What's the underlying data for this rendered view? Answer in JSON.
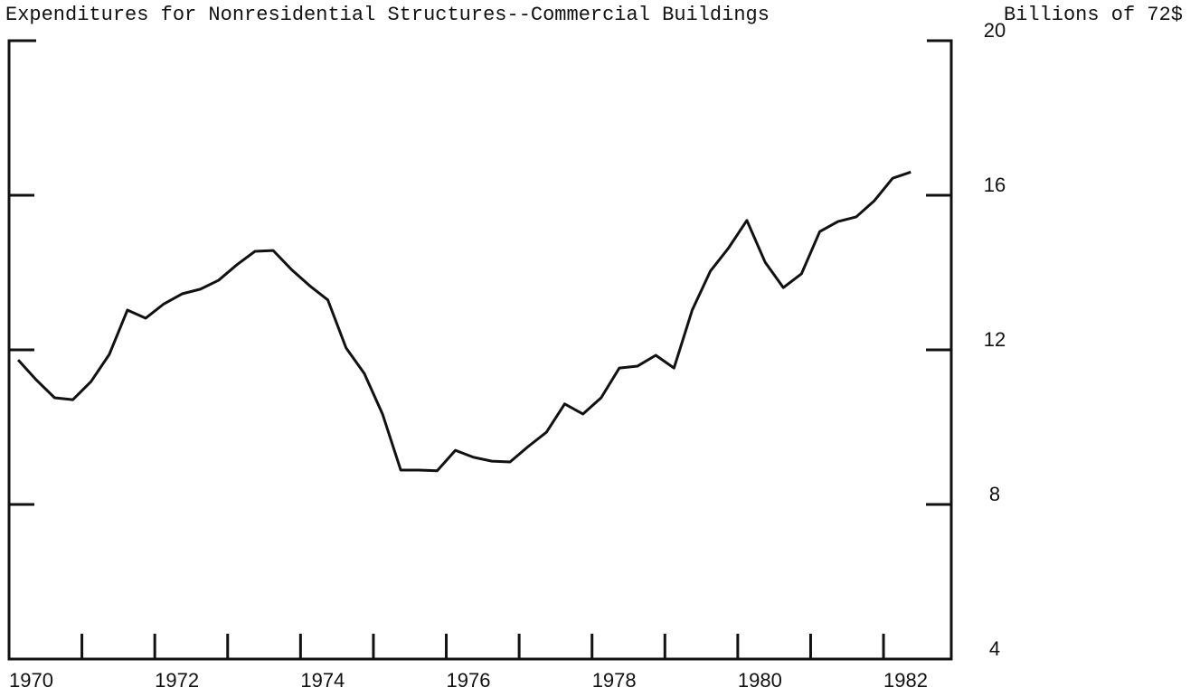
{
  "chart_data": {
    "type": "line",
    "title": "Expenditures for Nonresidential Structures--Commercial Buildings",
    "y_axis_label": "Billions of 72$",
    "series": [
      {
        "name": "Commercial Buildings",
        "color": "#111111",
        "x": [
          1970.125,
          1970.375,
          1970.625,
          1970.875,
          1971.125,
          1971.375,
          1971.625,
          1971.875,
          1972.125,
          1972.375,
          1972.625,
          1972.875,
          1973.125,
          1973.375,
          1973.625,
          1973.875,
          1974.125,
          1974.375,
          1974.625,
          1974.875,
          1975.125,
          1975.375,
          1975.625,
          1975.875,
          1976.125,
          1976.375,
          1976.625,
          1976.875,
          1977.125,
          1977.375,
          1977.625,
          1977.875,
          1978.125,
          1978.375,
          1978.625,
          1978.875,
          1979.125,
          1979.375,
          1979.625,
          1979.875,
          1980.125,
          1980.375,
          1980.625,
          1980.875,
          1981.125,
          1981.375,
          1981.625,
          1981.875,
          1982.125,
          1982.375
        ],
        "values": [
          11.74,
          11.22,
          10.76,
          10.71,
          11.18,
          11.88,
          13.03,
          12.82,
          13.19,
          13.45,
          13.57,
          13.8,
          14.2,
          14.55,
          14.57,
          14.08,
          13.66,
          13.29,
          12.05,
          11.39,
          10.34,
          8.89,
          8.89,
          8.87,
          9.4,
          9.22,
          9.12,
          9.1,
          9.5,
          9.87,
          10.6,
          10.34,
          10.76,
          11.53,
          11.58,
          11.86,
          11.53,
          13.03,
          14.04,
          14.64,
          15.35,
          14.27,
          13.61,
          13.97,
          15.06,
          15.32,
          15.44,
          15.86,
          16.44,
          16.6
        ]
      }
    ],
    "xlim": [
      1970,
      1982.93
    ],
    "xticks": [
      1971,
      1972,
      1973,
      1974,
      1975,
      1976,
      1977,
      1978,
      1979,
      1980,
      1981,
      1982
    ],
    "xticklabels": [
      1970,
      1972,
      1974,
      1976,
      1978,
      1980,
      1982
    ],
    "ylim": [
      4,
      20
    ],
    "yticks": [
      4,
      8,
      12,
      16,
      20
    ],
    "grid": false
  }
}
